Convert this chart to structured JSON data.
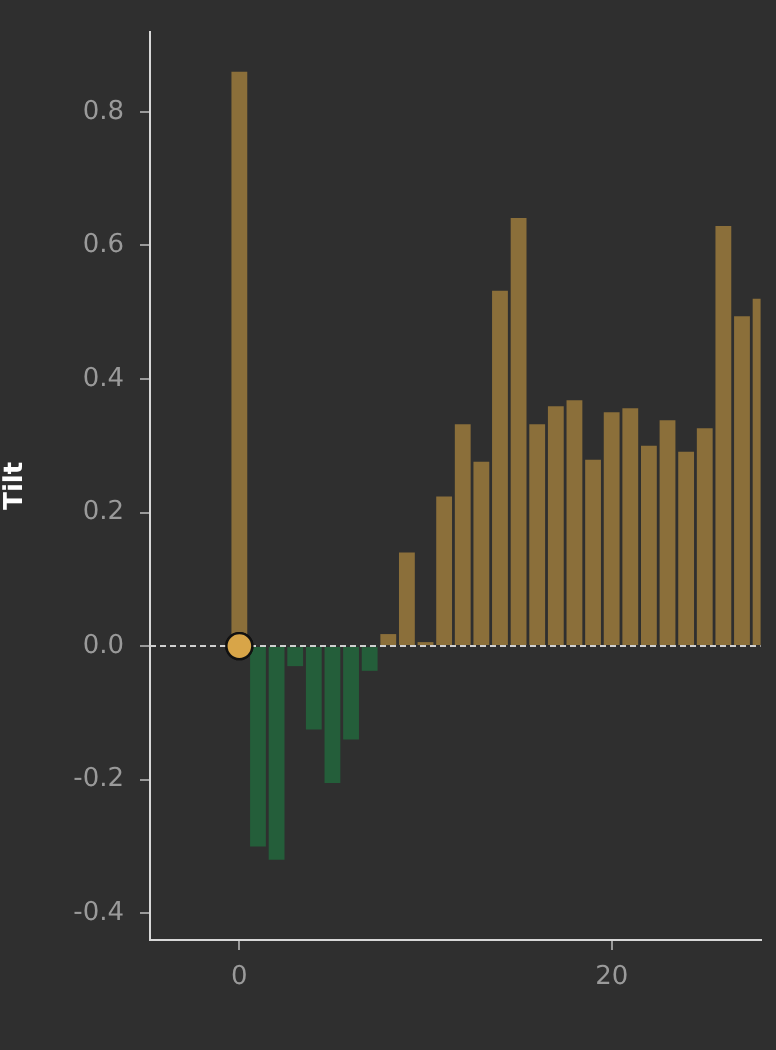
{
  "chart_data": {
    "type": "bar",
    "ylabel": "Tilt",
    "x": [
      0,
      1,
      2,
      3,
      4,
      5,
      6,
      7,
      8,
      9,
      10,
      11,
      12,
      13,
      14,
      15,
      16,
      17,
      18,
      19,
      20,
      21,
      22,
      23,
      24,
      25,
      26,
      27,
      28
    ],
    "xlim": [
      -4.8,
      28
    ],
    "xticks": [
      0,
      20
    ],
    "ylim": [
      -0.44,
      0.92
    ],
    "yticks": [
      -0.4,
      -0.2,
      {
        "value": 0,
        "label": "0.0"
      },
      0.2,
      0.4,
      0.6,
      0.8
    ],
    "grid": false,
    "legend": false,
    "series": [
      {
        "values": [
          0.86,
          -0.3,
          -0.32,
          -0.03,
          -0.125,
          -0.205,
          -0.14,
          -0.037,
          0.018,
          0.14,
          0.006,
          0.224,
          0.332,
          0.276,
          0.532,
          0.641,
          0.332,
          0.359,
          0.368,
          0.279,
          0.35,
          0.356,
          0.3,
          0.338,
          0.291,
          0.326,
          0.629,
          0.494,
          0.52
        ],
        "colors": [
          "#8b6f3a",
          "#245e3a",
          "#245e3a",
          "#245e3a",
          "#245e3a",
          "#245e3a",
          "#245e3a",
          "#245e3a",
          "#8b6f3a",
          "#8b6f3a",
          "#8b6f3a",
          "#8b6f3a",
          "#8b6f3a",
          "#8b6f3a",
          "#8b6f3a",
          "#8b6f3a",
          "#8b6f3a",
          "#8b6f3a",
          "#8b6f3a",
          "#8b6f3a",
          "#8b6f3a",
          "#8b6f3a",
          "#8b6f3a",
          "#8b6f3a",
          "#8b6f3a",
          "#8b6f3a",
          "#8b6f3a",
          "#8b6f3a",
          "#8b6f3a"
        ]
      },
      {
        "type": "scatter",
        "x": [
          0
        ],
        "values": [
          0
        ],
        "color": "#d8a548",
        "marker": "circle"
      }
    ],
    "ref_lines": [
      {
        "axis": "y",
        "value": 0,
        "color": "#d0d0d0",
        "line_style": "dashed"
      }
    ]
  }
}
